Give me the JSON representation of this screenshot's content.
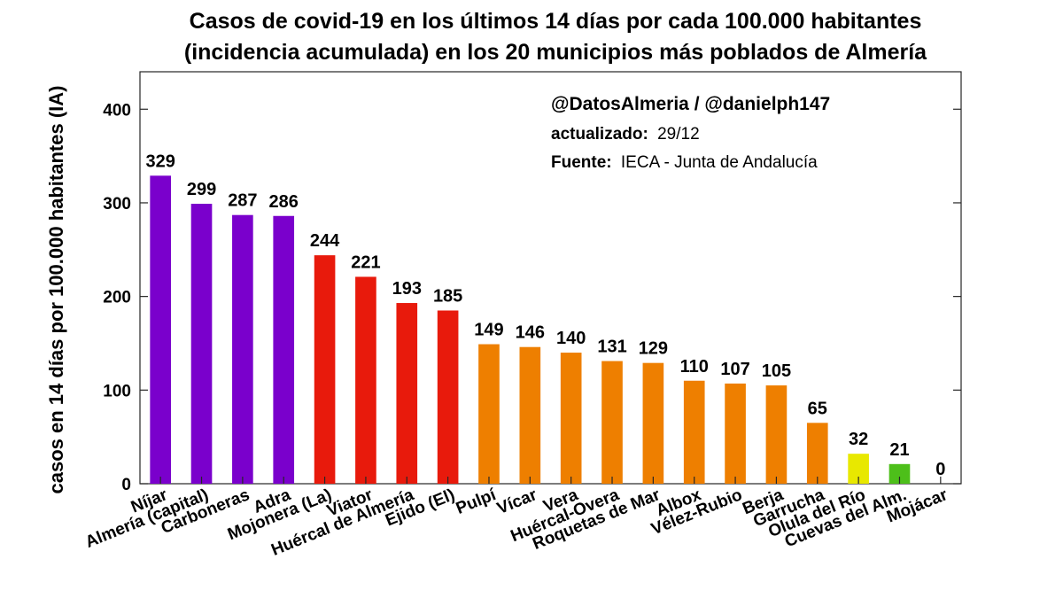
{
  "chart_data": {
    "type": "bar",
    "title_line1": "Casos de covid-19 en los últimos 14 días por cada 100.000 habitantes",
    "title_line2": "(incidencia acumulada) en los 20 municipios más poblados de Almería",
    "xlabel": "",
    "ylabel": "casos en 14 días por 100.000 habitantes (IA)",
    "ylim": [
      0,
      440
    ],
    "yticks": [
      0,
      100,
      200,
      300,
      400
    ],
    "grid": false,
    "categories": [
      "Níjar",
      "Almería (capital)",
      "Carboneras",
      "Adra",
      "Mojonera (La)",
      "Viator",
      "Huércal de Almería",
      "Ejido (El)",
      "Pulpí",
      "Vícar",
      "Vera",
      "Huércal-Overa",
      "Roquetas de Mar",
      "Albox",
      "Vélez-Rubio",
      "Berja",
      "Garrucha",
      "Olula del Río",
      "Cuevas del Alm.",
      "Mojácar"
    ],
    "values": [
      329,
      299,
      287,
      286,
      244,
      221,
      193,
      185,
      149,
      146,
      140,
      131,
      129,
      110,
      107,
      105,
      65,
      32,
      21,
      0
    ],
    "bar_colors": [
      "#7a00cc",
      "#7a00cc",
      "#7a00cc",
      "#7a00cc",
      "#e81a0c",
      "#e81a0c",
      "#e81a0c",
      "#e81a0c",
      "#ee7f00",
      "#ee7f00",
      "#ee7f00",
      "#ee7f00",
      "#ee7f00",
      "#ee7f00",
      "#ee7f00",
      "#ee7f00",
      "#ee7f00",
      "#e8e800",
      "#4dbf1a",
      "#4dbf1a"
    ],
    "annotations": {
      "handles": "@DatosAlmeria / @danielph147",
      "updated_label": "actualizado:",
      "updated_value": "29/12",
      "source_label": "Fuente:",
      "source_value": "IECA - Junta de Andalucía"
    }
  }
}
